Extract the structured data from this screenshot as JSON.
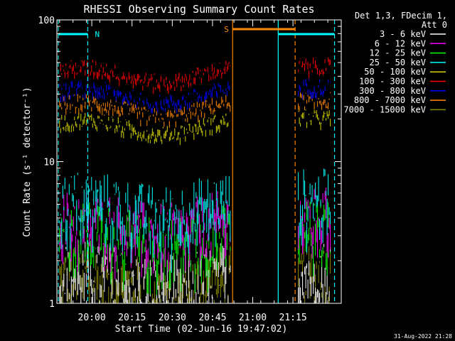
{
  "chart_data": {
    "type": "line",
    "title": "RHESSI Observing Summary Count Rates",
    "xlabel": "Start Time (02-Jun-16 19:47:02)",
    "ylabel": "Count Rate (s⁻¹ detector⁻¹)",
    "yscale": "log",
    "ylim": [
      1,
      100
    ],
    "xlim_minutes": [
      19.783,
      21.55
    ],
    "x_ticks": [
      "20:00",
      "20:15",
      "20:30",
      "20:45",
      "21:00",
      "21:15"
    ],
    "y_ticks": [
      "1",
      "10",
      "100"
    ],
    "legend_header": [
      "Det 1,3, FDecim 1,",
      "Att 0"
    ],
    "legend_position": "right",
    "series": [
      {
        "name": "3 - 6 keV",
        "color": "#ffffff",
        "typical": 1.6
      },
      {
        "name": "6 - 12 keV",
        "color": "#ff00ff",
        "typical": 3.7
      },
      {
        "name": "12 - 25 keV",
        "color": "#00ff00",
        "typical": 3.0
      },
      {
        "name": "25 - 50 keV",
        "color": "#00ffff",
        "typical": 5.0
      },
      {
        "name": "50 - 100 keV",
        "color": "#d4d400",
        "typical": 18
      },
      {
        "name": "100 - 300 keV",
        "color": "#ff0000",
        "typical": 42
      },
      {
        "name": "300 - 800 keV",
        "color": "#0000ff",
        "typical": 30
      },
      {
        "name": "800 - 7000 keV",
        "color": "#ff8800",
        "typical": 24
      },
      {
        "name": "7000 - 15000 keV",
        "color": "#888800",
        "typical": 1.5
      }
    ],
    "annotations": [
      {
        "label": "N",
        "color": "#00ffff"
      },
      {
        "label": "S",
        "color": "#ff8800"
      }
    ],
    "footer_date": "31-Aug-2022 21:28"
  }
}
